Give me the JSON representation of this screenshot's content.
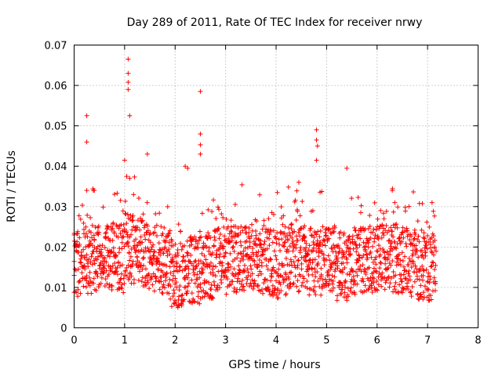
{
  "chart_data": {
    "type": "scatter",
    "title": "Day 289 of 2011, Rate Of TEC Index for receiver nrwy",
    "xlabel": "GPS time / hours",
    "ylabel": "ROTI / TECUs",
    "xlim": [
      0,
      8
    ],
    "ylim": [
      0,
      0.07
    ],
    "x_ticks": [
      "0",
      "1",
      "2",
      "3",
      "4",
      "5",
      "6",
      "7",
      "8"
    ],
    "y_ticks": [
      "0",
      "0.01",
      "0.02",
      "0.03",
      "0.04",
      "0.05",
      "0.06",
      "0.07"
    ],
    "grid": true,
    "marker": "+",
    "color": "#ff0000",
    "series": [
      {
        "name": "ROTI",
        "x_range": [
          0.0,
          7.17
        ],
        "typical_range": [
          0.005,
          0.025
        ],
        "notable_points": [
          {
            "x": 0.0,
            "y": 0.023
          },
          {
            "x": 0.0,
            "y": 0.013
          },
          {
            "x": 0.25,
            "y": 0.0525
          },
          {
            "x": 0.25,
            "y": 0.046
          },
          {
            "x": 0.25,
            "y": 0.034
          },
          {
            "x": 0.4,
            "y": 0.034
          },
          {
            "x": 1.0,
            "y": 0.0415
          },
          {
            "x": 1.07,
            "y": 0.0665
          },
          {
            "x": 1.07,
            "y": 0.063
          },
          {
            "x": 1.07,
            "y": 0.0608
          },
          {
            "x": 1.07,
            "y": 0.059
          },
          {
            "x": 1.1,
            "y": 0.0525
          },
          {
            "x": 1.1,
            "y": 0.037
          },
          {
            "x": 1.45,
            "y": 0.043
          },
          {
            "x": 2.2,
            "y": 0.04
          },
          {
            "x": 2.25,
            "y": 0.0395
          },
          {
            "x": 2.5,
            "y": 0.0585
          },
          {
            "x": 2.5,
            "y": 0.048
          },
          {
            "x": 2.5,
            "y": 0.0453
          },
          {
            "x": 2.5,
            "y": 0.043
          },
          {
            "x": 4.8,
            "y": 0.049
          },
          {
            "x": 4.8,
            "y": 0.0465
          },
          {
            "x": 4.82,
            "y": 0.045
          },
          {
            "x": 4.8,
            "y": 0.0415
          },
          {
            "x": 5.4,
            "y": 0.0395
          },
          {
            "x": 6.3,
            "y": 0.034
          },
          {
            "x": 6.35,
            "y": 0.031
          },
          {
            "x": 7.15,
            "y": 0.011
          }
        ]
      }
    ]
  }
}
